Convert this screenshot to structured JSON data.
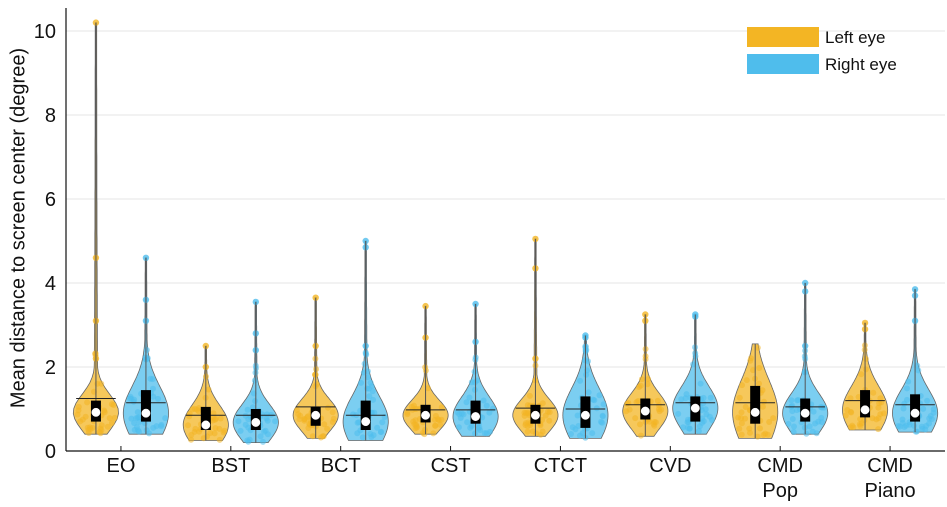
{
  "chart_data": {
    "type": "violin",
    "ylabel": "Mean distance to screen center (degree)",
    "xlabel": "",
    "ylim": [
      0,
      10.5
    ],
    "yticks": [
      "0",
      "2",
      "4",
      "6",
      "8",
      "10"
    ],
    "grid": "horizontal",
    "legend_position": "top-right",
    "colors": {
      "left": "#F3B524",
      "right": "#4FBDEC",
      "box": "#000000",
      "median": "#ffffff"
    },
    "categories": [
      [
        "EO"
      ],
      [
        "BST"
      ],
      [
        "BCT"
      ],
      [
        "CST"
      ],
      [
        "CTCT"
      ],
      [
        "CVD"
      ],
      [
        "CMD",
        "Pop"
      ],
      [
        "CMD",
        "Piano"
      ]
    ],
    "series": [
      {
        "name": "Left eye",
        "groups": [
          {
            "min": 0.4,
            "q1": 0.7,
            "median": 0.92,
            "mean": 1.25,
            "q3": 1.2,
            "max": 10.2,
            "outliers": [
              10.2,
              4.6,
              3.1,
              2.2
            ]
          },
          {
            "min": 0.25,
            "q1": 0.5,
            "median": 0.62,
            "mean": 0.85,
            "q3": 1.05,
            "max": 2.5,
            "outliers": [
              2.5,
              2.0
            ]
          },
          {
            "min": 0.3,
            "q1": 0.6,
            "median": 0.85,
            "mean": 1.05,
            "q3": 1.05,
            "max": 3.65,
            "outliers": [
              3.65,
              2.5
            ]
          },
          {
            "min": 0.4,
            "q1": 0.68,
            "median": 0.85,
            "mean": 0.98,
            "q3": 1.1,
            "max": 3.45,
            "outliers": [
              3.45,
              2.7
            ]
          },
          {
            "min": 0.35,
            "q1": 0.65,
            "median": 0.85,
            "mean": 1.02,
            "q3": 1.1,
            "max": 5.05,
            "outliers": [
              5.05,
              4.35,
              2.2
            ]
          },
          {
            "min": 0.35,
            "q1": 0.75,
            "median": 0.95,
            "mean": 1.1,
            "q3": 1.25,
            "max": 3.25,
            "outliers": [
              3.25,
              3.1
            ]
          },
          {
            "min": 0.3,
            "q1": 0.65,
            "median": 0.92,
            "mean": 1.15,
            "q3": 1.55,
            "max": 2.55,
            "outliers": []
          },
          {
            "min": 0.5,
            "q1": 0.8,
            "median": 0.98,
            "mean": 1.2,
            "q3": 1.45,
            "max": 3.05,
            "outliers": [
              3.05,
              2.9
            ]
          }
        ]
      },
      {
        "name": "Right eye",
        "groups": [
          {
            "min": 0.4,
            "q1": 0.7,
            "median": 0.9,
            "mean": 1.15,
            "q3": 1.45,
            "max": 4.6,
            "outliers": [
              4.6,
              3.6,
              3.1
            ]
          },
          {
            "min": 0.2,
            "q1": 0.5,
            "median": 0.68,
            "mean": 0.85,
            "q3": 1.0,
            "max": 3.55,
            "outliers": [
              3.55,
              2.8,
              2.4
            ]
          },
          {
            "min": 0.25,
            "q1": 0.5,
            "median": 0.7,
            "mean": 0.85,
            "q3": 1.2,
            "max": 5.0,
            "outliers": [
              5.0,
              4.85,
              2.5
            ]
          },
          {
            "min": 0.35,
            "q1": 0.65,
            "median": 0.82,
            "mean": 0.98,
            "q3": 1.2,
            "max": 3.5,
            "outliers": [
              3.5,
              2.6
            ]
          },
          {
            "min": 0.3,
            "q1": 0.55,
            "median": 0.85,
            "mean": 1.0,
            "q3": 1.3,
            "max": 2.75,
            "outliers": [
              2.75,
              2.7
            ]
          },
          {
            "min": 0.4,
            "q1": 0.7,
            "median": 1.02,
            "mean": 1.15,
            "q3": 1.3,
            "max": 3.25,
            "outliers": [
              3.25,
              3.2
            ]
          },
          {
            "min": 0.4,
            "q1": 0.7,
            "median": 0.9,
            "mean": 1.05,
            "q3": 1.25,
            "max": 4.0,
            "outliers": [
              4.0,
              3.8,
              2.5
            ]
          },
          {
            "min": 0.45,
            "q1": 0.7,
            "median": 0.9,
            "mean": 1.1,
            "q3": 1.35,
            "max": 3.85,
            "outliers": [
              3.85,
              3.7,
              3.1
            ]
          }
        ]
      }
    ]
  }
}
